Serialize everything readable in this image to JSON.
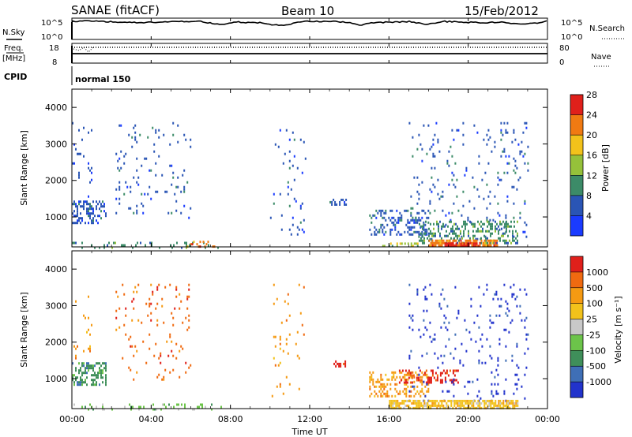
{
  "header": {
    "station": "SANAE (fitACF)",
    "beam": "Beam 10",
    "date": "15/Feb/2012"
  },
  "sky_panel": {
    "left_label": "N.Sky",
    "left_ticks": [
      "10^5",
      "10^0"
    ],
    "right_label": "N.Search",
    "right_ticks": [
      "10^5",
      "10^0"
    ]
  },
  "freq_panel": {
    "left_label_1": "Freq.",
    "left_label_2": "[MHz]",
    "left_ticks": [
      "18",
      "8"
    ],
    "right_label": "Nave",
    "right_ticks": [
      "80",
      "0"
    ]
  },
  "cpid": {
    "label": "CPID",
    "mode": "normal 150"
  },
  "time_axis": {
    "ticks": [
      "00:00",
      "04:00",
      "08:00",
      "12:00",
      "16:00",
      "20:00",
      "00:00"
    ],
    "label": "Time UT"
  },
  "chart_data": [
    {
      "type": "heatmap",
      "title": "",
      "xlabel": "Time UT",
      "ylabel": "Slant Range [km]",
      "xlim": [
        0,
        24
      ],
      "ylim": [
        180,
        4500
      ],
      "yticks": [
        "1000",
        "2000",
        "3000",
        "4000"
      ],
      "colorbar": {
        "label": "Power [dB]",
        "ticks": [
          "4",
          "8",
          "12",
          "16",
          "20",
          "24",
          "28"
        ],
        "colors": [
          "#1a3bff",
          "#2a55b5",
          "#3c8b68",
          "#95c13a",
          "#f2c21b",
          "#f07a12",
          "#e0201b"
        ]
      },
      "patches": [
        {
          "t0": 0.0,
          "t1": 1.7,
          "r0": 850,
          "r1": 1450,
          "level": 1,
          "density": 0.45
        },
        {
          "t0": 0.0,
          "t1": 1.0,
          "r0": 1500,
          "r1": 3600,
          "level": 1,
          "density": 0.04
        },
        {
          "t0": 0.0,
          "t1": 7.5,
          "r0": 190,
          "r1": 320,
          "level": 2,
          "density": 0.15
        },
        {
          "t0": 2.2,
          "t1": 6.0,
          "r0": 1000,
          "r1": 3600,
          "level": 1,
          "density": 0.05
        },
        {
          "t0": 5.8,
          "t1": 7.3,
          "r0": 200,
          "r1": 350,
          "level": 5,
          "density": 0.25
        },
        {
          "t0": 10.0,
          "t1": 11.8,
          "r0": 500,
          "r1": 3600,
          "level": 1,
          "density": 0.04
        },
        {
          "t0": 13.0,
          "t1": 13.8,
          "r0": 1350,
          "r1": 1500,
          "level": 1,
          "density": 0.5
        },
        {
          "t0": 15.0,
          "t1": 18.0,
          "r0": 550,
          "r1": 1200,
          "level": 1,
          "density": 0.3
        },
        {
          "t0": 15.5,
          "t1": 17.5,
          "r0": 200,
          "r1": 300,
          "level": 3,
          "density": 0.4
        },
        {
          "t0": 17.0,
          "t1": 23.0,
          "r0": 400,
          "r1": 3600,
          "level": 1,
          "density": 0.05
        },
        {
          "t0": 17.5,
          "t1": 22.5,
          "r0": 300,
          "r1": 900,
          "level": 2,
          "density": 0.35
        },
        {
          "t0": 18.0,
          "t1": 21.5,
          "r0": 200,
          "r1": 380,
          "level": 5,
          "density": 0.7
        },
        {
          "t0": 18.8,
          "t1": 20.5,
          "r0": 200,
          "r1": 300,
          "level": 6,
          "density": 0.6
        }
      ]
    },
    {
      "type": "heatmap",
      "title": "",
      "xlabel": "Time UT",
      "ylabel": "Slant Range [km]",
      "xlim": [
        0,
        24
      ],
      "ylim": [
        180,
        4500
      ],
      "yticks": [
        "1000",
        "2000",
        "3000",
        "4000"
      ],
      "colorbar": {
        "label": "Velocity [m s⁻¹]",
        "ticks": [
          "1000",
          "500",
          "100",
          "25",
          "-25",
          "-100",
          "-500",
          "-1000"
        ],
        "colors": [
          "#2233cc",
          "#3f6fb6",
          "#3f8f5a",
          "#6cc44a",
          "#c8c8c8",
          "#f2c21b",
          "#f59a12",
          "#f06a10",
          "#e0201b"
        ]
      },
      "patches": [
        {
          "t0": 0.0,
          "t1": 1.7,
          "r0": 850,
          "r1": 1450,
          "level": 2,
          "density": 0.45
        },
        {
          "t0": 0.0,
          "t1": 1.0,
          "r0": 1500,
          "r1": 3600,
          "level": 6,
          "density": 0.04
        },
        {
          "t0": 0.0,
          "t1": 7.5,
          "r0": 190,
          "r1": 320,
          "level": 3,
          "density": 0.15
        },
        {
          "t0": 2.2,
          "t1": 6.0,
          "r0": 1000,
          "r1": 3600,
          "level": 7,
          "density": 0.05
        },
        {
          "t0": 10.0,
          "t1": 11.8,
          "r0": 500,
          "r1": 3600,
          "level": 6,
          "density": 0.04
        },
        {
          "t0": 13.2,
          "t1": 13.8,
          "r0": 1350,
          "r1": 1500,
          "level": 8,
          "density": 0.5
        },
        {
          "t0": 15.0,
          "t1": 18.0,
          "r0": 550,
          "r1": 1200,
          "level": 6,
          "density": 0.35
        },
        {
          "t0": 16.5,
          "t1": 19.5,
          "r0": 900,
          "r1": 1250,
          "level": 8,
          "density": 0.3
        },
        {
          "t0": 17.0,
          "t1": 23.0,
          "r0": 400,
          "r1": 3600,
          "level": 0,
          "density": 0.05
        },
        {
          "t0": 16.0,
          "t1": 22.5,
          "r0": 200,
          "r1": 420,
          "level": 5,
          "density": 0.7
        }
      ]
    }
  ]
}
